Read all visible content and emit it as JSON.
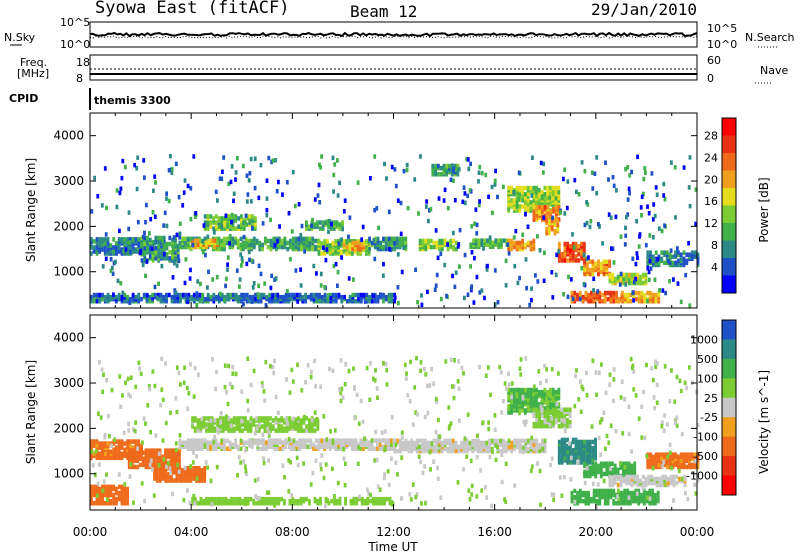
{
  "header": {
    "station": "Syowa East (fitACF)",
    "beam": "Beam 12",
    "date": "29/Jan/2010"
  },
  "top_panels": {
    "nsky_label": "N.Sky",
    "nsky_ticks": [
      "10^5",
      "10^0"
    ],
    "nsearch_label": "N.Search",
    "nsearch_ticks": [
      "10^5",
      "10^0"
    ],
    "freq_label": "Freq.",
    "freq_unit": "[MHz]",
    "freq_ticks": [
      "18",
      "8"
    ],
    "nave_label": "Nave",
    "nave_ticks": [
      "60",
      "0"
    ],
    "cpid_label": "CPID",
    "cpid_value": "themis 3300"
  },
  "chart_data": [
    {
      "type": "heatmap",
      "panel": "power",
      "ylabel": "Slant Range [km]",
      "xlabel": "Time UT",
      "x_ticks": [
        "00:00",
        "04:00",
        "08:00",
        "12:00",
        "16:00",
        "20:00",
        "00:00"
      ],
      "xlim_hours": [
        0,
        24
      ],
      "y_ticks": [
        1000,
        2000,
        3000,
        4000
      ],
      "ylim": [
        200,
        4500
      ],
      "colorbar": {
        "label": "Power [dB]",
        "ticks": [
          "4",
          "8",
          "12",
          "16",
          "20",
          "24",
          "28"
        ],
        "colors": [
          "#0000ff",
          "#1e50c8",
          "#2c8a86",
          "#3fb04a",
          "#7ccc33",
          "#e6dc1e",
          "#f0a01e",
          "#ef6a1a",
          "#e83214",
          "#ff0000"
        ]
      },
      "bands": [
        {
          "t": [
            0.0,
            2.0
          ],
          "r": [
            1350,
            1700
          ],
          "v": 8
        },
        {
          "t": [
            2.0,
            3.5
          ],
          "r": [
            1200,
            1700
          ],
          "v": 10
        },
        {
          "t": [
            3.5,
            6.0
          ],
          "r": [
            1450,
            1700
          ],
          "v": 12
        },
        {
          "t": [
            4.0,
            5.0
          ],
          "r": [
            1500,
            1650
          ],
          "v": 19
        },
        {
          "t": [
            4.5,
            6.5
          ],
          "r": [
            1900,
            2200
          ],
          "v": 13
        },
        {
          "t": [
            6.0,
            9.0
          ],
          "r": [
            1450,
            1700
          ],
          "v": 11
        },
        {
          "t": [
            8.5,
            10.0
          ],
          "r": [
            1900,
            2050
          ],
          "v": 12
        },
        {
          "t": [
            9.0,
            11.0
          ],
          "r": [
            1350,
            1650
          ],
          "v": 14
        },
        {
          "t": [
            10.0,
            10.8
          ],
          "r": [
            1450,
            1620
          ],
          "v": 20
        },
        {
          "t": [
            11.0,
            12.5
          ],
          "r": [
            1450,
            1700
          ],
          "v": 10
        },
        {
          "t": [
            13.0,
            14.5
          ],
          "r": [
            1450,
            1650
          ],
          "v": 14
        },
        {
          "t": [
            13.5,
            14.5
          ],
          "r": [
            3100,
            3300
          ],
          "v": 10
        },
        {
          "t": [
            15.0,
            16.5
          ],
          "r": [
            1500,
            1650
          ],
          "v": 12
        },
        {
          "t": [
            16.5,
            17.5
          ],
          "r": [
            1450,
            1650
          ],
          "v": 21
        },
        {
          "t": [
            16.5,
            18.5
          ],
          "r": [
            2300,
            2800
          ],
          "v": 15
        },
        {
          "t": [
            17.5,
            18.5
          ],
          "r": [
            2100,
            2400
          ],
          "v": 22
        },
        {
          "t": [
            18.0,
            18.5
          ],
          "r": [
            1800,
            2100
          ],
          "v": 21
        },
        {
          "t": [
            18.5,
            19.5
          ],
          "r": [
            1200,
            1600
          ],
          "v": 25
        },
        {
          "t": [
            19.5,
            20.5
          ],
          "r": [
            900,
            1200
          ],
          "v": 22
        },
        {
          "t": [
            19.0,
            21.0
          ],
          "r": [
            300,
            500
          ],
          "v": 23
        },
        {
          "t": [
            21.0,
            22.5
          ],
          "r": [
            300,
            500
          ],
          "v": 20
        },
        {
          "t": [
            20.5,
            22.0
          ],
          "r": [
            700,
            900
          ],
          "v": 16
        },
        {
          "t": [
            22.0,
            24.0
          ],
          "r": [
            1100,
            1400
          ],
          "v": 8
        },
        {
          "t": [
            0.0,
            12.0
          ],
          "r": [
            300,
            450
          ],
          "v": 7
        }
      ]
    },
    {
      "type": "heatmap",
      "panel": "velocity",
      "ylabel": "Slant Range [km]",
      "xlabel": "Time UT",
      "x_ticks": [
        "00:00",
        "04:00",
        "08:00",
        "12:00",
        "16:00",
        "20:00",
        "00:00"
      ],
      "xlim_hours": [
        0,
        24
      ],
      "y_ticks": [
        1000,
        2000,
        3000,
        4000
      ],
      "ylim": [
        200,
        4500
      ],
      "colorbar": {
        "label": "Velocity [m s^-1]",
        "ticks": [
          "1000",
          "500",
          "100",
          "25",
          "-25",
          "-100",
          "-500",
          "-1000"
        ],
        "colors": [
          "#1e50c8",
          "#2c8a86",
          "#3fb04a",
          "#7ccc33",
          "#c8c8c8",
          "#f0a01e",
          "#ef6a1a",
          "#e83214",
          "#ff0000"
        ]
      },
      "bands": [
        {
          "t": [
            0.0,
            2.0
          ],
          "r": [
            1300,
            1700
          ],
          "v": -150
        },
        {
          "t": [
            1.5,
            3.5
          ],
          "r": [
            1100,
            1500
          ],
          "v": -300
        },
        {
          "t": [
            2.5,
            4.5
          ],
          "r": [
            800,
            1100
          ],
          "v": -350
        },
        {
          "t": [
            0.0,
            1.5
          ],
          "r": [
            300,
            700
          ],
          "v": -250
        },
        {
          "t": [
            3.5,
            12.0
          ],
          "r": [
            1500,
            1700
          ],
          "v": 0
        },
        {
          "t": [
            4.0,
            9.0
          ],
          "r": [
            1900,
            2200
          ],
          "v": 50
        },
        {
          "t": [
            12.0,
            18.0
          ],
          "r": [
            1450,
            1700
          ],
          "v": 0
        },
        {
          "t": [
            16.5,
            18.5
          ],
          "r": [
            2300,
            2800
          ],
          "v": 120
        },
        {
          "t": [
            17.5,
            19.0
          ],
          "r": [
            2000,
            2400
          ],
          "v": 40
        },
        {
          "t": [
            18.5,
            20.0
          ],
          "r": [
            1200,
            1700
          ],
          "v": 700
        },
        {
          "t": [
            19.5,
            21.5
          ],
          "r": [
            900,
            1200
          ],
          "v": 350
        },
        {
          "t": [
            19.0,
            22.5
          ],
          "r": [
            300,
            600
          ],
          "v": 200
        },
        {
          "t": [
            20.5,
            23.5
          ],
          "r": [
            700,
            900
          ],
          "v": 0
        },
        {
          "t": [
            22.0,
            24.0
          ],
          "r": [
            1100,
            1400
          ],
          "v": -150
        },
        {
          "t": [
            4.0,
            12.0
          ],
          "r": [
            300,
            400
          ],
          "v": 60
        }
      ]
    }
  ]
}
